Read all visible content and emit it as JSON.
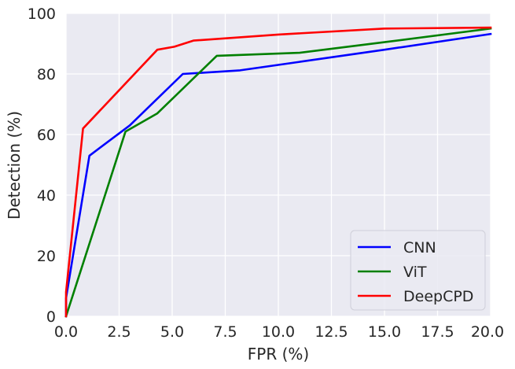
{
  "chart_data": {
    "type": "line",
    "title": "",
    "xlabel": "FPR (%)",
    "ylabel": "Detection (%)",
    "xlim": [
      0,
      20
    ],
    "ylim": [
      0,
      100
    ],
    "x_ticks": [
      "0.0",
      "2.5",
      "5.0",
      "7.5",
      "10.0",
      "12.5",
      "15.0",
      "17.5",
      "20.0"
    ],
    "y_ticks": [
      "0",
      "20",
      "40",
      "60",
      "80",
      "100"
    ],
    "grid": true,
    "legend_position": "lower-right",
    "background_color": "#eaeaf2",
    "grid_color": "#ffffff",
    "series": [
      {
        "name": "CNN",
        "color": "#0000ff",
        "points": [
          [
            0,
            0
          ],
          [
            0,
            6
          ],
          [
            1.1,
            53
          ],
          [
            3.0,
            63
          ],
          [
            5.5,
            80
          ],
          [
            8.2,
            81.2
          ],
          [
            11,
            84
          ],
          [
            15,
            88
          ],
          [
            20,
            93.2
          ]
        ]
      },
      {
        "name": "ViT",
        "color": "#008000",
        "points": [
          [
            0,
            0
          ],
          [
            2.8,
            61
          ],
          [
            4.3,
            67
          ],
          [
            7.1,
            86
          ],
          [
            11,
            87
          ],
          [
            15,
            90.5
          ],
          [
            20,
            95
          ]
        ]
      },
      {
        "name": "DeepCPD",
        "color": "#ff0000",
        "points": [
          [
            0,
            0
          ],
          [
            0,
            8
          ],
          [
            0.8,
            62
          ],
          [
            4.3,
            88
          ],
          [
            5.1,
            89
          ],
          [
            6.0,
            91
          ],
          [
            10,
            93
          ],
          [
            15,
            95
          ],
          [
            20,
            95.3
          ]
        ]
      }
    ]
  }
}
